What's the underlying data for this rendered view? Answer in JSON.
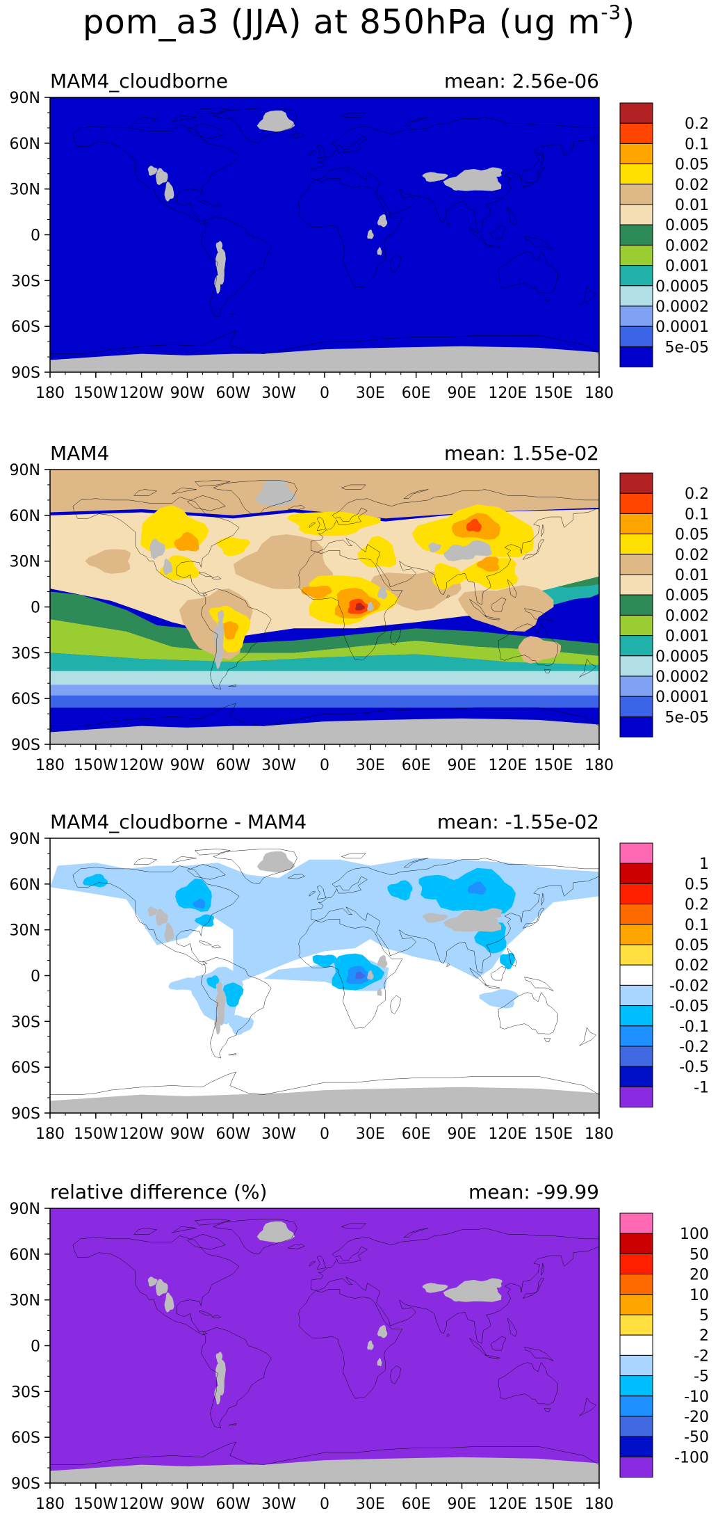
{
  "title_main": "pom_a3 (JJA) at 850hPa (ug m",
  "title_exp": "-3",
  "title_close": ")",
  "lat_labels": [
    "90N",
    "60N",
    "30N",
    "0",
    "30S",
    "60S",
    "90S"
  ],
  "lon_labels": [
    "180",
    "150W",
    "120W",
    "90W",
    "60W",
    "30W",
    "0",
    "30E",
    "60E",
    "90E",
    "120E",
    "150E",
    "180"
  ],
  "colors": {
    "land_missing": "#bdbdbd",
    "coast": "#000000",
    "abs_scale": [
      "#0000cc",
      "#3c64e6",
      "#7fa2f5",
      "#b0e0e6",
      "#20b2aa",
      "#9acd32",
      "#2e8b57",
      "#f5deb3",
      "#deb887",
      "#ffe000",
      "#ffa500",
      "#ff4500",
      "#b22222"
    ],
    "diff_scale": [
      "#8a2be2",
      "#0010c8",
      "#4169e1",
      "#1e90ff",
      "#00bfff",
      "#a9d6ff",
      "#ffffff",
      "#ffe040",
      "#ffa500",
      "#ff6a00",
      "#ff2000",
      "#cc0000",
      "#ff69b4"
    ]
  },
  "panels": [
    {
      "name": "MAM4_cloudborne",
      "mean_label": "mean: 2.56e-06",
      "field": "cloudborne",
      "colorbar_labels": [
        "0.2",
        "0.1",
        "0.05",
        "0.02",
        "0.01",
        "0.005",
        "0.002",
        "0.001",
        "0.0005",
        "0.0002",
        "0.0001",
        "5e-05"
      ]
    },
    {
      "name": "MAM4",
      "mean_label": "mean: 1.55e-02",
      "field": "mam4",
      "colorbar_labels": [
        "0.2",
        "0.1",
        "0.05",
        "0.02",
        "0.01",
        "0.005",
        "0.002",
        "0.001",
        "0.0005",
        "0.0002",
        "0.0001",
        "5e-05"
      ]
    },
    {
      "name": "MAM4_cloudborne - MAM4",
      "mean_label": "mean: -1.55e-02",
      "field": "diff",
      "colorbar_labels": [
        "1",
        "0.5",
        "0.2",
        "0.1",
        "0.05",
        "0.02",
        "-0.02",
        "-0.05",
        "-0.1",
        "-0.2",
        "-0.5",
        "-1"
      ]
    },
    {
      "name": "relative difference (%)",
      "mean_label": "mean: -99.99",
      "field": "reldiff",
      "colorbar_labels": [
        "100",
        "50",
        "20",
        "10",
        "5",
        "2",
        "-2",
        "-5",
        "-10",
        "-20",
        "-50",
        "-100"
      ]
    }
  ]
}
